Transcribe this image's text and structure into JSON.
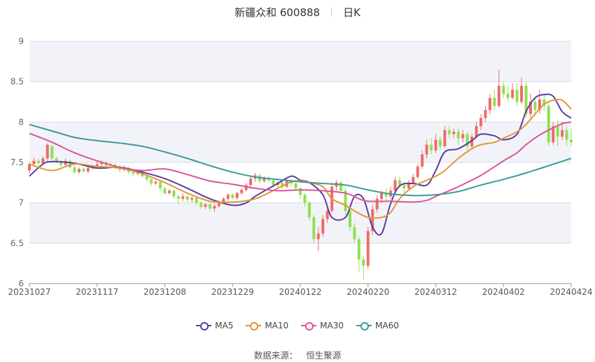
{
  "header": {
    "stock_name": "新疆众和 600888",
    "period": "日K"
  },
  "source": {
    "label": "数据来源：",
    "value": "恒生聚源"
  },
  "colors": {
    "up": "#ef6b6b",
    "down": "#8fe050",
    "MA5": "#5b3fa0",
    "MA10": "#e0973a",
    "MA30": "#d9559b",
    "MA60": "#3f9a9a",
    "plot_band": "#f2f3f8",
    "grid": "#dcdde6"
  },
  "chart_data": {
    "type": "line",
    "title": "新疆众和 600888",
    "ylim": [
      6,
      9
    ],
    "y_ticks": [
      "6",
      "6.5",
      "7",
      "7.5",
      "8",
      "8.5",
      "9"
    ],
    "x_ticks": [
      "20231027",
      "20231117",
      "20231208",
      "20231229",
      "20240122",
      "20240220",
      "20240312",
      "20240402",
      "20240424"
    ],
    "grid": true,
    "legend_position": "bottom",
    "x_range_index": [
      0,
      120
    ],
    "series": [
      {
        "name": "MA5",
        "x": [
          0,
          3,
          5,
          10,
          15,
          20,
          25,
          30,
          35,
          40,
          45,
          48,
          50,
          55,
          58,
          60,
          62,
          65,
          67,
          70,
          72,
          74,
          76,
          78,
          80,
          82,
          85,
          88,
          90,
          92,
          95,
          98,
          100,
          103,
          105,
          108,
          110,
          112,
          114,
          116,
          118,
          120
        ],
        "y": [
          7.33,
          7.48,
          7.51,
          7.49,
          7.43,
          7.44,
          7.38,
          7.3,
          7.18,
          7.05,
          6.97,
          7.0,
          7.08,
          7.24,
          7.33,
          7.28,
          7.25,
          7.1,
          6.82,
          6.82,
          7.08,
          7.05,
          6.7,
          6.62,
          6.99,
          7.21,
          7.24,
          7.22,
          7.4,
          7.63,
          7.67,
          7.77,
          7.85,
          7.83,
          7.78,
          7.85,
          8.13,
          8.3,
          8.34,
          8.32,
          8.13,
          8.05
        ]
      },
      {
        "name": "MA10",
        "x": [
          0,
          5,
          10,
          15,
          20,
          25,
          30,
          35,
          40,
          45,
          50,
          55,
          58,
          60,
          62,
          65,
          67,
          70,
          72,
          75,
          78,
          80,
          82,
          85,
          88,
          90,
          92,
          95,
          98,
          100,
          103,
          105,
          108,
          110,
          112,
          114,
          116,
          118,
          120
        ],
        "y": [
          7.48,
          7.4,
          7.48,
          7.45,
          7.43,
          7.36,
          7.25,
          7.12,
          7.02,
          7.01,
          7.05,
          7.18,
          7.26,
          7.27,
          7.25,
          7.2,
          7.05,
          6.97,
          6.9,
          6.82,
          6.82,
          6.88,
          7.05,
          7.2,
          7.28,
          7.33,
          7.4,
          7.55,
          7.67,
          7.72,
          7.75,
          7.8,
          7.88,
          7.97,
          8.1,
          8.22,
          8.27,
          8.27,
          8.16
        ]
      },
      {
        "name": "MA30",
        "x": [
          0,
          5,
          10,
          15,
          20,
          25,
          30,
          35,
          40,
          45,
          50,
          55,
          60,
          65,
          70,
          73,
          75,
          80,
          85,
          88,
          90,
          93,
          95,
          100,
          105,
          108,
          110,
          113,
          115,
          118,
          120
        ],
        "y": [
          7.86,
          7.75,
          7.62,
          7.52,
          7.44,
          7.4,
          7.42,
          7.35,
          7.27,
          7.23,
          7.18,
          7.15,
          7.16,
          7.15,
          7.12,
          7.05,
          7.02,
          7.02,
          7.01,
          7.03,
          7.08,
          7.15,
          7.2,
          7.34,
          7.52,
          7.62,
          7.72,
          7.84,
          7.9,
          7.98,
          8.0
        ]
      },
      {
        "name": "MA60",
        "x": [
          0,
          5,
          10,
          15,
          20,
          25,
          30,
          35,
          40,
          45,
          50,
          55,
          60,
          65,
          70,
          75,
          80,
          85,
          90,
          95,
          100,
          105,
          110,
          115,
          120
        ],
        "y": [
          7.97,
          7.89,
          7.81,
          7.77,
          7.74,
          7.7,
          7.63,
          7.55,
          7.46,
          7.38,
          7.32,
          7.29,
          7.26,
          7.24,
          7.22,
          7.16,
          7.11,
          7.09,
          7.1,
          7.14,
          7.22,
          7.29,
          7.37,
          7.46,
          7.55
        ]
      }
    ],
    "candles": {
      "count": 121,
      "ohlc": [
        [
          7.4,
          7.48,
          7.36,
          7.5
        ],
        [
          7.48,
          7.52,
          7.45,
          7.56
        ],
        [
          7.52,
          7.49,
          7.46,
          7.55
        ],
        [
          7.49,
          7.55,
          7.47,
          7.58
        ],
        [
          7.55,
          7.72,
          7.52,
          7.74
        ],
        [
          7.7,
          7.55,
          7.52,
          7.72
        ],
        [
          7.55,
          7.51,
          7.48,
          7.57
        ],
        [
          7.51,
          7.47,
          7.44,
          7.53
        ],
        [
          7.47,
          7.52,
          7.45,
          7.55
        ],
        [
          7.52,
          7.44,
          7.42,
          7.54
        ],
        [
          7.44,
          7.38,
          7.36,
          7.46
        ],
        [
          7.38,
          7.42,
          7.36,
          7.44
        ],
        [
          7.42,
          7.39,
          7.37,
          7.44
        ],
        [
          7.39,
          7.43,
          7.37,
          7.45
        ],
        [
          7.43,
          7.45,
          7.41,
          7.48
        ],
        [
          7.45,
          7.48,
          7.43,
          7.51
        ],
        [
          7.48,
          7.5,
          7.45,
          7.53
        ],
        [
          7.5,
          7.46,
          7.44,
          7.52
        ],
        [
          7.46,
          7.47,
          7.43,
          7.49
        ],
        [
          7.47,
          7.45,
          7.42,
          7.49
        ],
        [
          7.45,
          7.41,
          7.38,
          7.47
        ],
        [
          7.41,
          7.43,
          7.39,
          7.46
        ],
        [
          7.43,
          7.38,
          7.36,
          7.45
        ],
        [
          7.38,
          7.36,
          7.33,
          7.4
        ],
        [
          7.36,
          7.39,
          7.34,
          7.41
        ],
        [
          7.39,
          7.33,
          7.31,
          7.4
        ],
        [
          7.33,
          7.29,
          7.26,
          7.35
        ],
        [
          7.29,
          7.24,
          7.21,
          7.31
        ],
        [
          7.24,
          7.26,
          7.22,
          7.28
        ],
        [
          7.26,
          7.18,
          7.15,
          7.27
        ],
        [
          7.18,
          7.12,
          7.1,
          7.2
        ],
        [
          7.12,
          7.15,
          7.1,
          7.17
        ],
        [
          7.15,
          7.08,
          7.05,
          7.16
        ],
        [
          7.08,
          7.05,
          6.98,
          7.1
        ],
        [
          7.05,
          7.08,
          7.02,
          7.12
        ],
        [
          7.08,
          7.04,
          7.01,
          7.1
        ],
        [
          7.04,
          7.06,
          7.0,
          7.08
        ],
        [
          7.06,
          7.0,
          6.97,
          7.07
        ],
        [
          7.0,
          6.95,
          6.93,
          7.02
        ],
        [
          6.95,
          6.98,
          6.92,
          7.0
        ],
        [
          6.98,
          6.93,
          6.9,
          7.0
        ],
        [
          6.93,
          6.96,
          6.89,
          6.99
        ],
        [
          6.96,
          7.01,
          6.94,
          7.03
        ],
        [
          7.01,
          7.05,
          6.99,
          7.07
        ],
        [
          7.05,
          7.1,
          7.03,
          7.12
        ],
        [
          7.1,
          7.06,
          7.04,
          7.12
        ],
        [
          7.06,
          7.12,
          7.04,
          7.14
        ],
        [
          7.12,
          7.16,
          7.1,
          7.18
        ],
        [
          7.16,
          7.22,
          7.14,
          7.24
        ],
        [
          7.22,
          7.3,
          7.2,
          7.33
        ],
        [
          7.3,
          7.34,
          7.26,
          7.37
        ],
        [
          7.34,
          7.27,
          7.24,
          7.36
        ],
        [
          7.27,
          7.3,
          7.25,
          7.33
        ],
        [
          7.3,
          7.28,
          7.25,
          7.33
        ],
        [
          7.28,
          7.22,
          7.19,
          7.3
        ],
        [
          7.22,
          7.25,
          7.2,
          7.27
        ],
        [
          7.25,
          7.2,
          7.18,
          7.28
        ],
        [
          7.2,
          7.27,
          7.18,
          7.29
        ],
        [
          7.27,
          7.24,
          7.2,
          7.29
        ],
        [
          7.24,
          7.18,
          7.15,
          7.26
        ],
        [
          7.18,
          7.1,
          7.05,
          7.2
        ],
        [
          7.1,
          7.0,
          6.95,
          7.12
        ],
        [
          7.0,
          6.82,
          6.78,
          7.02
        ],
        [
          6.82,
          6.55,
          6.5,
          6.85
        ],
        [
          6.55,
          6.62,
          6.4,
          6.7
        ],
        [
          6.62,
          6.8,
          6.58,
          6.85
        ],
        [
          6.8,
          6.9,
          6.75,
          6.95
        ],
        [
          6.9,
          7.2,
          6.88,
          7.25
        ],
        [
          7.2,
          7.25,
          7.15,
          7.28
        ],
        [
          7.25,
          7.15,
          7.12,
          7.28
        ],
        [
          7.15,
          6.9,
          6.85,
          7.18
        ],
        [
          6.9,
          6.7,
          6.65,
          6.95
        ],
        [
          6.7,
          6.55,
          6.5,
          6.75
        ],
        [
          6.55,
          6.3,
          6.15,
          6.58
        ],
        [
          6.3,
          6.22,
          6.05,
          6.35
        ],
        [
          6.22,
          6.65,
          6.18,
          6.7
        ],
        [
          6.65,
          6.92,
          6.6,
          6.97
        ],
        [
          6.92,
          7.05,
          6.88,
          7.1
        ],
        [
          7.05,
          7.12,
          7.0,
          7.15
        ],
        [
          7.12,
          7.08,
          7.03,
          7.18
        ],
        [
          7.08,
          7.15,
          7.05,
          7.2
        ],
        [
          7.15,
          7.28,
          7.12,
          7.32
        ],
        [
          7.28,
          7.22,
          7.18,
          7.32
        ],
        [
          7.22,
          7.18,
          7.12,
          7.26
        ],
        [
          7.18,
          7.25,
          7.15,
          7.28
        ],
        [
          7.25,
          7.32,
          7.22,
          7.36
        ],
        [
          7.32,
          7.45,
          7.3,
          7.48
        ],
        [
          7.45,
          7.6,
          7.42,
          7.65
        ],
        [
          7.6,
          7.72,
          7.55,
          7.78
        ],
        [
          7.72,
          7.65,
          7.6,
          7.8
        ],
        [
          7.65,
          7.78,
          7.62,
          7.85
        ],
        [
          7.78,
          7.7,
          7.65,
          7.82
        ],
        [
          7.7,
          7.9,
          7.68,
          7.95
        ],
        [
          7.9,
          7.85,
          7.8,
          7.95
        ],
        [
          7.85,
          7.88,
          7.8,
          7.92
        ],
        [
          7.88,
          7.8,
          7.72,
          7.92
        ],
        [
          7.8,
          7.85,
          7.75,
          7.9
        ],
        [
          7.85,
          7.7,
          7.65,
          7.88
        ],
        [
          7.7,
          7.82,
          7.68,
          7.86
        ],
        [
          7.82,
          7.95,
          7.8,
          8.0
        ],
        [
          7.95,
          8.05,
          7.9,
          8.1
        ],
        [
          8.05,
          8.15,
          8.0,
          8.2
        ],
        [
          8.15,
          8.3,
          8.1,
          8.35
        ],
        [
          8.3,
          8.2,
          8.15,
          8.4
        ],
        [
          8.2,
          8.45,
          8.18,
          8.65
        ],
        [
          8.45,
          8.35,
          8.3,
          8.5
        ],
        [
          8.35,
          8.3,
          8.25,
          8.45
        ],
        [
          8.3,
          8.4,
          8.28,
          8.48
        ],
        [
          8.4,
          8.25,
          8.2,
          8.48
        ],
        [
          8.25,
          8.45,
          8.22,
          8.55
        ],
        [
          8.45,
          8.1,
          8.05,
          8.5
        ],
        [
          8.1,
          8.25,
          8.05,
          8.35
        ],
        [
          8.25,
          8.15,
          8.08,
          8.3
        ],
        [
          8.15,
          8.28,
          8.1,
          8.4
        ],
        [
          8.28,
          8.2,
          8.15,
          8.35
        ],
        [
          8.2,
          7.75,
          7.7,
          8.25
        ],
        [
          7.75,
          7.95,
          7.72,
          8.0
        ],
        [
          7.95,
          7.82,
          7.7,
          8.02
        ],
        [
          7.82,
          7.9,
          7.78,
          8.0
        ],
        [
          7.9,
          7.78,
          7.7,
          7.95
        ],
        [
          7.78,
          7.75,
          7.7,
          7.92
        ]
      ]
    }
  }
}
